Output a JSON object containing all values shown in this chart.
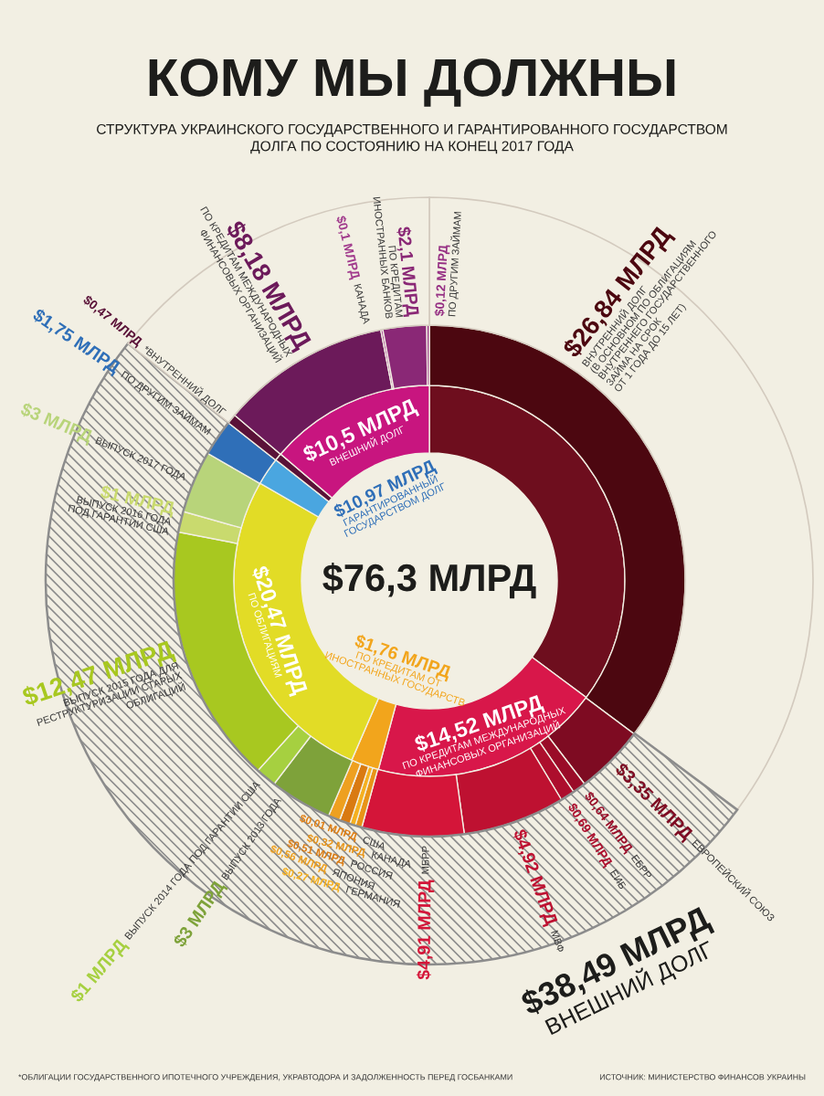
{
  "chart_data": {
    "type": "donut",
    "title": "КОМУ МЫ ДОЛЖНЫ",
    "subtitle": "СТРУКТУРА УКРАИНСКОГО ГОСУДАРСТВЕННОГО И ГАРАНТИРОВАННОГО ГОСУДАРСТВОМ\nДОЛГА ПО СОСТОЯНИЮ НА КОНЕЦ 2017 ГОДА",
    "totals": [
      "$76,3 МЛРД"
    ],
    "series": [
      {
        "values": [
          26.84,
          14.52,
          1.76,
          20.47,
          1.75,
          0.47,
          10.5
        ],
        "colors": [
          "#6e0e1e",
          "#d8174a",
          "#f2a51c",
          "#e2dc26",
          "#4aa6e0",
          "#5a1238",
          "#c8157f"
        ],
        "value_labels": [
          null,
          "$14,52 МЛРД\nПО КРЕДИТАМ МЕЖДУНАРОДНЫХ\nФИНАНСОВЫХ ОРГАНИЗАЦИЙ",
          "$1,76 МЛРД\nПО КРЕДИТАМ ОТ\nИНОСТРАННЫХ ГОСУДАРСТВ",
          "$20,47 МЛРД\nПО ОБЛИГАЦИЯМ",
          null,
          null,
          "$10,5 МЛРД\nВНЕШНИЙ ДОЛГ"
        ]
      },
      {
        "values": [
          26.84,
          3.35,
          0.64,
          0.69,
          4.92,
          4.91,
          0.32,
          0.27,
          0.51,
          0.01,
          0.56,
          3,
          1,
          12.47,
          1,
          3,
          1.75,
          0.47,
          8.18,
          0.1,
          2.1,
          0.12
        ],
        "colors": [
          "#4c0710",
          "#7e0b22",
          "#9a0c28",
          "#ad0e2d",
          "#be1131",
          "#d41539",
          "#e89418",
          "#f5b020",
          "#d97a12",
          "#e07f14",
          "#eea020",
          "#7ea23a",
          "#a6d040",
          "#a8c820",
          "#c9da6e",
          "#b8d47a",
          "#2f6fb8",
          "#5a1238",
          "#6c1a5a",
          "#a13a8c",
          "#8a2876",
          "#963084"
        ],
        "value_labels": [
          "$26,84 МЛРД\nВНУТРЕННИЙ ДОЛГ\n(В ОСНОВНОМ ПО ОБЛИГАЦИЯМ\nВНУТРЕННЕГО ГОСУДАРСТВЕННОГО\nЗАЙМА НА СРОК\nОТ 1 ГОДА ДО 15 ЛЕТ)",
          "$3,35 МЛРД\nЕВРОПЕЙСКИЙ СОЮЗ",
          "$0,64 МЛРД\nЕБРР",
          "$0,69 МЛРД\nЕИБ",
          "$4,92 МЛРД\nМВФ",
          "$4,91 МЛРД\nМБРР",
          "$0,32 МЛРД\nКАНАДА",
          "$0,27 МЛРД\nГЕРМАНИЯ",
          "$0,51 МЛРД\nРОССИЯ",
          "$0,01 МЛРД\nСША",
          "$0,56 МЛРД\nЯПОНИЯ",
          "$3 МЛРД\nВЫПУСК 2013 ГОДА",
          "$1 МЛРД\nВЫПУСК 2014 ГОДА ПОД ГАРАНТИИ США",
          "$12,47 МЛРД\nВЫПУСК 2015 ГОДА ДЛЯ\nРЕСТРУКТУРИЗАЦИИ СТАРЫХ\nОБЛИГАЦИЙ",
          "$1 МЛРД\nВЫПУСК 2016 ГОДА\nПОД ГАРАНТИИ США",
          "$3 МЛРД\nВЫПУСК 2017 ГОДА",
          "$1,75 МЛРД\nПО ДРУГИМ ЗАЙМАМ",
          "$0,47 МЛРД\n*ВНУТРЕННИЙ ДОЛГ",
          "$8,18 МЛРД\nПО КРЕДИТАМ МЕЖДУНАРОДНЫХ\nФИНАНСОВЫХ ОРГАНИЗАЦИЙ",
          "$0,1 МЛРД\nКАНАДА",
          "$2,1 МЛРД\nПО КРЕДИТАМ\nИНОСТРАННЫХ БАНКОВ",
          "$0,12 МЛРД\nПО ДРУГИМ ЗАЙМАМ"
        ]
      },
      {
        "values": [
          26.84,
          38.49,
          10.97
        ],
        "colors": [
          null,
          "#8c8c8c",
          null
        ],
        "value_labels": [
          null,
          "$38,49 МЛРД\nВНЕШНИЙ ДОЛГ",
          "$10,97 МЛРД\nГАРАНТИРОВАННЫЙ\nГОСУДАРСТВОМ ДОЛГ"
        ]
      }
    ],
    "annotations": [
      "*ОБЛИГАЦИИ ГОСУДАРСТВЕННОГО ИПОТЕЧНОГО УЧРЕЖДЕНИЯ, УКРАВТОДОРА И ЗАДОЛЖЕННОСТЬ ПЕРЕД ГОСБАНКАМИ",
      "ИСТОЧНИК: МИНИСТЕРСТВО ФИНАНСОВ УКРАИНЫ"
    ]
  }
}
